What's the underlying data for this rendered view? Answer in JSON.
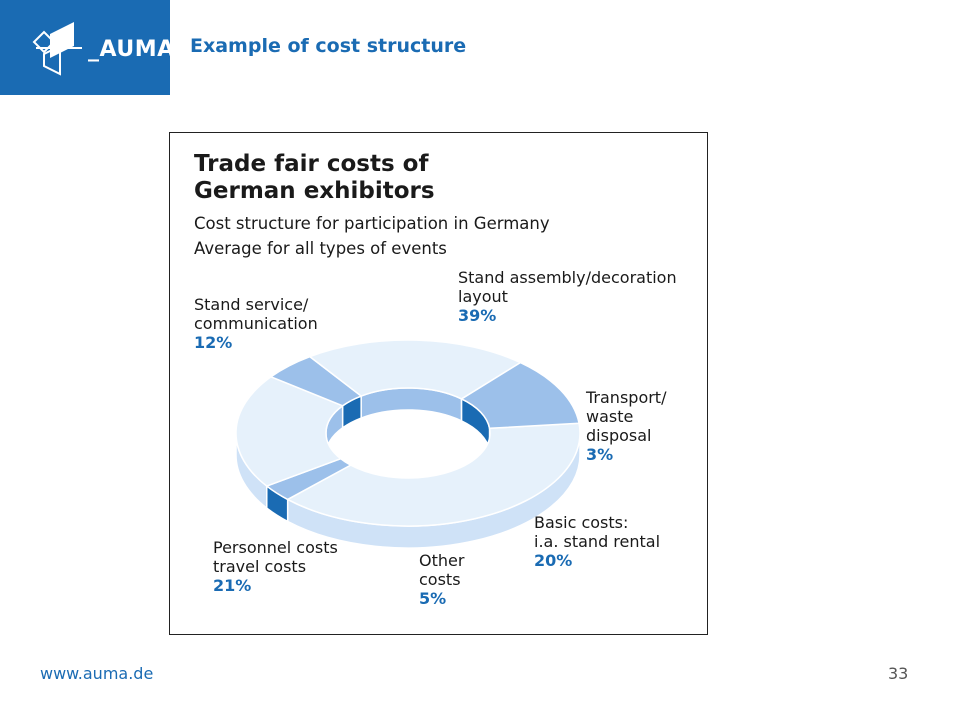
{
  "header": {
    "logo_text": "_AUMA",
    "slide_title": "Example of cost structure"
  },
  "chart_data": {
    "type": "pie",
    "style": "3d-donut",
    "title_lines": [
      "Trade fair costs of",
      "German exhibitors"
    ],
    "subtitle_lines": [
      "Cost structure for participation in Germany",
      "Average for all types of events"
    ],
    "slices": [
      {
        "label_lines": [
          "Stand assembly/decoration",
          "layout"
        ],
        "value": 39,
        "display": "39%",
        "color": "#e6f1fb"
      },
      {
        "label_lines": [
          "Transport/",
          "waste",
          "disposal"
        ],
        "value": 3,
        "display": "3%",
        "color": "#9cc0ea"
      },
      {
        "label_lines": [
          "Basic costs:",
          "i.a. stand rental"
        ],
        "value": 20,
        "display": "20%",
        "color": "#e6f1fb"
      },
      {
        "label_lines": [
          "Other",
          "costs"
        ],
        "value": 5,
        "display": "5%",
        "color": "#9cc0ea"
      },
      {
        "label_lines": [
          "Personnel costs",
          "travel costs"
        ],
        "value": 21,
        "display": "21%",
        "color": "#e6f1fb"
      },
      {
        "label_lines": [
          "Stand service/",
          "communication"
        ],
        "value": 12,
        "display": "12%",
        "color": "#9cc0ea"
      }
    ],
    "colors": {
      "light_face": "#e6f1fb",
      "accent_face": "#9cc0ea",
      "side_light": "#cfe2f7",
      "side_dark": "#1a6bb3",
      "percent_text": "#1a6bb3"
    }
  },
  "footer": {
    "url": "www.auma.de",
    "page_number": "33"
  }
}
